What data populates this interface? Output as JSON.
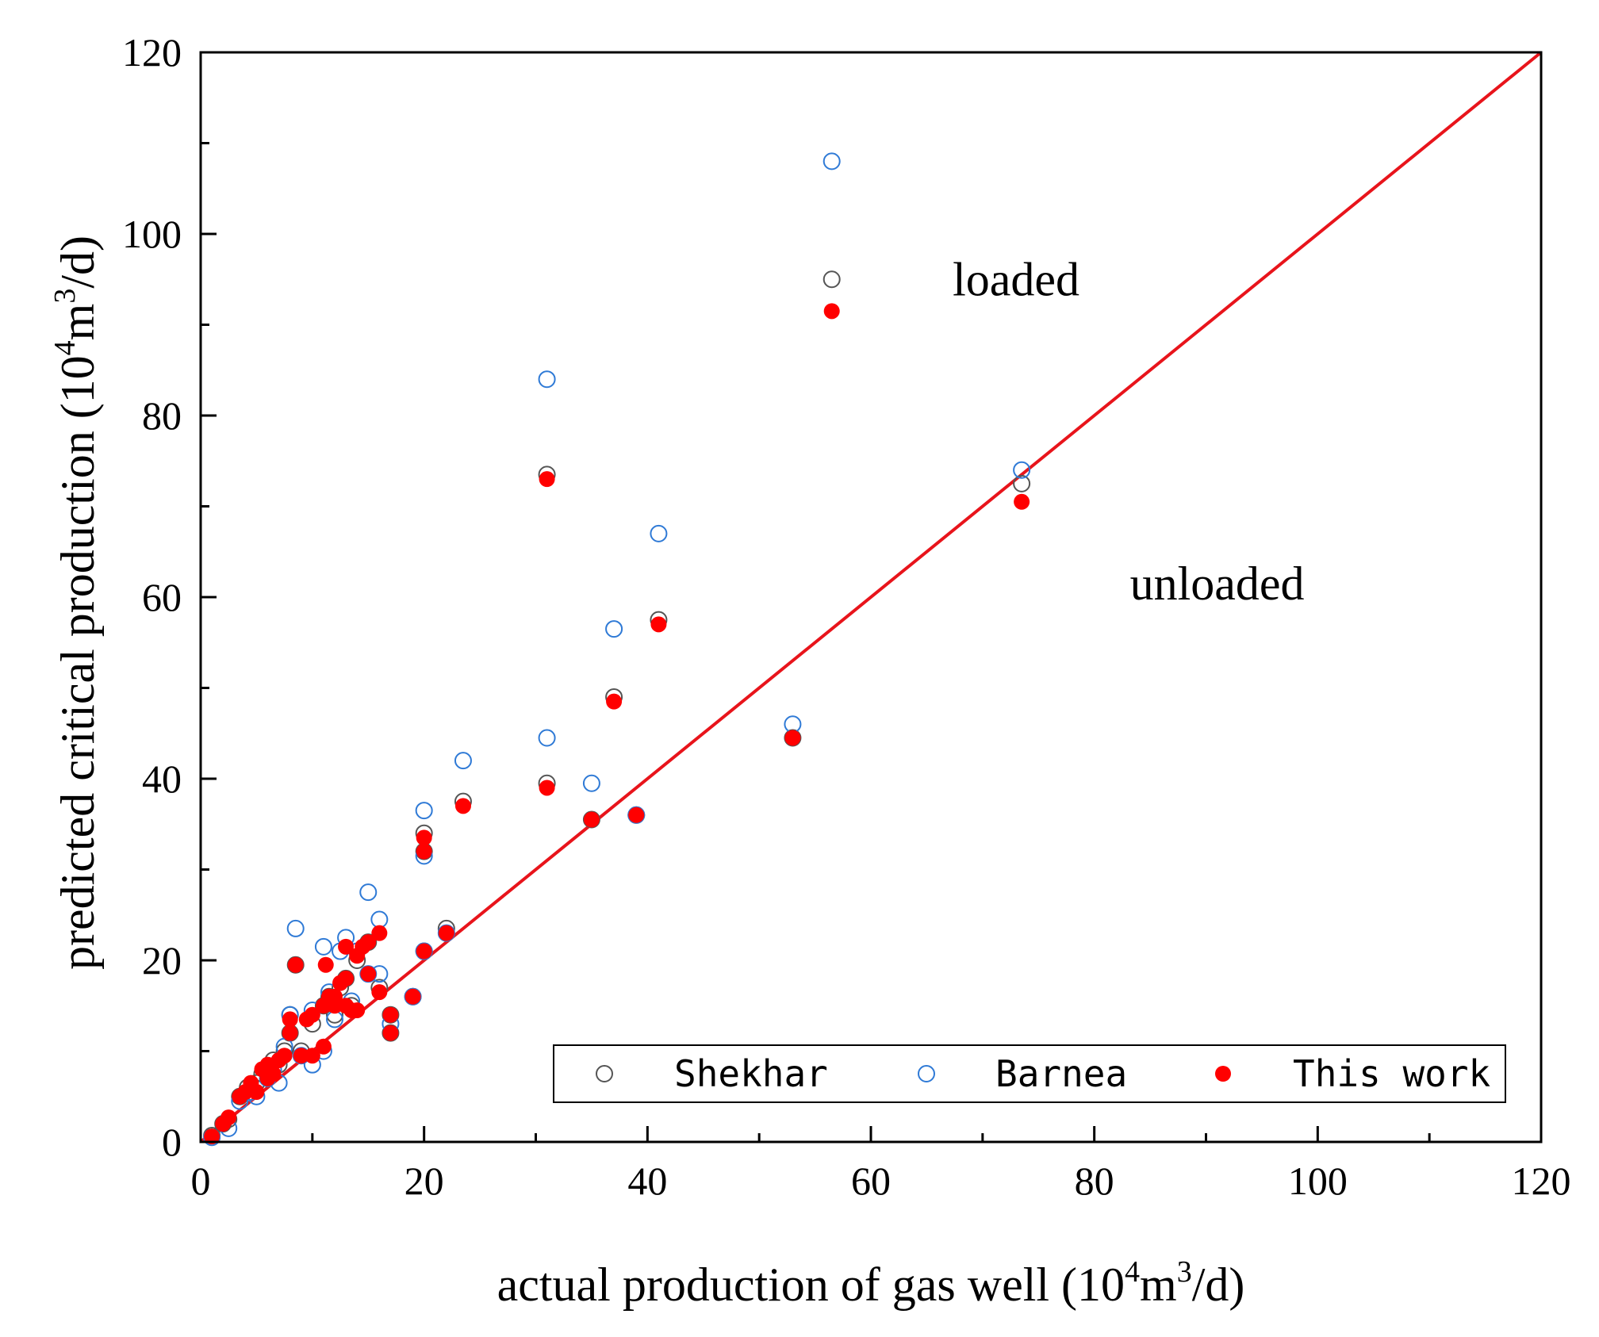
{
  "chart_data": {
    "type": "scatter",
    "title": "",
    "xlabel": "actual production of gas well (10^4m^3/d)",
    "ylabel": "predicted critical production (10^4m^3/d)",
    "xlabel_parts": {
      "pre": "actual production of gas well (10",
      "sup1": "4",
      "mid": "m",
      "sup2": "3",
      "post": "/d)"
    },
    "ylabel_parts": {
      "pre": "predicted critical production (10",
      "sup1": "4",
      "mid": "m",
      "sup2": "3",
      "post": "/d)"
    },
    "xlim": [
      0,
      120
    ],
    "ylim": [
      0,
      120
    ],
    "xticks": [
      0,
      20,
      40,
      60,
      80,
      100,
      120
    ],
    "yticks": [
      0,
      20,
      40,
      60,
      80,
      100,
      120
    ],
    "xtick_labels": [
      "0",
      "20",
      "40",
      "60",
      "80",
      "100",
      "120"
    ],
    "ytick_labels": [
      "0",
      "20",
      "40",
      "60",
      "80",
      "100",
      "120"
    ],
    "grid": false,
    "legend_position": "bottom-right",
    "annotations": [
      {
        "text": "loaded",
        "x": 73,
        "y": 95
      },
      {
        "text": "unloaded",
        "x": 91,
        "y": 61.5
      }
    ],
    "reference_line": {
      "name": "y = x",
      "x": [
        0,
        120
      ],
      "y": [
        0,
        120
      ],
      "color": "#e8141b"
    },
    "series": [
      {
        "name": "Shekhar",
        "marker": "open-circle",
        "color": "#555555",
        "points": [
          [
            1,
            0.7
          ],
          [
            2,
            2
          ],
          [
            2.5,
            2.5
          ],
          [
            3.5,
            5
          ],
          [
            4.2,
            6
          ],
          [
            5,
            6.5
          ],
          [
            5.5,
            7.5
          ],
          [
            6,
            8
          ],
          [
            6.5,
            9
          ],
          [
            7,
            8.5
          ],
          [
            7.5,
            10
          ],
          [
            8,
            12
          ],
          [
            8,
            14
          ],
          [
            8.5,
            19.5
          ],
          [
            9,
            10
          ],
          [
            10,
            13
          ],
          [
            11,
            15
          ],
          [
            11.5,
            16
          ],
          [
            12,
            14
          ],
          [
            12.5,
            17
          ],
          [
            13,
            18
          ],
          [
            13.5,
            15
          ],
          [
            14,
            20
          ],
          [
            15,
            22
          ],
          [
            16,
            17
          ],
          [
            17,
            14
          ],
          [
            17,
            12
          ],
          [
            19,
            16
          ],
          [
            20,
            21
          ],
          [
            20,
            32
          ],
          [
            20,
            34
          ],
          [
            22,
            23.5
          ],
          [
            23.5,
            37.5
          ],
          [
            31,
            39.5
          ],
          [
            31,
            73.5
          ],
          [
            35,
            35.5
          ],
          [
            37,
            49
          ],
          [
            39,
            36
          ],
          [
            41,
            57.5
          ],
          [
            53,
            44.5
          ],
          [
            56.5,
            95
          ],
          [
            73.5,
            72.5
          ]
        ]
      },
      {
        "name": "Barnea",
        "marker": "open-circle",
        "color": "#2f7ad6",
        "points": [
          [
            1,
            0.5
          ],
          [
            2.5,
            1.5
          ],
          [
            3.5,
            4.5
          ],
          [
            4.5,
            5.5
          ],
          [
            5,
            5
          ],
          [
            6,
            7
          ],
          [
            6.5,
            8
          ],
          [
            7,
            6.5
          ],
          [
            7.5,
            10.5
          ],
          [
            8,
            14
          ],
          [
            8.5,
            23.5
          ],
          [
            9,
            9.5
          ],
          [
            10,
            8.5
          ],
          [
            10,
            14.5
          ],
          [
            11,
            21.5
          ],
          [
            11,
            10
          ],
          [
            11.5,
            16.5
          ],
          [
            12,
            13.5
          ],
          [
            12.5,
            21
          ],
          [
            13,
            22.5
          ],
          [
            13.5,
            15.5
          ],
          [
            14,
            21
          ],
          [
            15,
            27.5
          ],
          [
            15,
            18.5
          ],
          [
            16,
            24.5
          ],
          [
            16,
            18.5
          ],
          [
            17,
            13
          ],
          [
            19,
            16
          ],
          [
            20,
            21
          ],
          [
            20,
            31.5
          ],
          [
            20,
            36.5
          ],
          [
            22,
            23
          ],
          [
            23.5,
            42
          ],
          [
            31,
            44.5
          ],
          [
            31,
            84
          ],
          [
            35,
            39.5
          ],
          [
            37,
            56.5
          ],
          [
            39,
            36
          ],
          [
            41,
            67
          ],
          [
            53,
            46
          ],
          [
            56.5,
            108
          ],
          [
            73.5,
            74
          ]
        ]
      },
      {
        "name": "This work",
        "marker": "filled-circle",
        "color": "#ff0000",
        "points": [
          [
            1,
            0.6
          ],
          [
            2,
            2
          ],
          [
            2.5,
            2.7
          ],
          [
            3.5,
            5
          ],
          [
            4,
            5.5
          ],
          [
            4.5,
            6.5
          ],
          [
            5,
            5.5
          ],
          [
            5.5,
            8
          ],
          [
            6,
            7
          ],
          [
            6,
            8.5
          ],
          [
            6.5,
            7.5
          ],
          [
            7,
            9
          ],
          [
            7.5,
            9.5
          ],
          [
            8,
            12
          ],
          [
            8,
            13.5
          ],
          [
            8.5,
            19.5
          ],
          [
            9,
            9.5
          ],
          [
            9.5,
            13.5
          ],
          [
            10,
            14
          ],
          [
            10,
            9.5
          ],
          [
            11,
            10.5
          ],
          [
            11,
            15
          ],
          [
            11.2,
            19.5
          ],
          [
            11.5,
            16
          ],
          [
            12,
            15
          ],
          [
            12,
            16
          ],
          [
            12.5,
            17.5
          ],
          [
            13,
            21.5
          ],
          [
            13,
            18
          ],
          [
            13,
            15
          ],
          [
            13.5,
            14.5
          ],
          [
            14,
            20.5
          ],
          [
            14,
            14.5
          ],
          [
            14.5,
            21.5
          ],
          [
            15,
            22
          ],
          [
            15,
            18.5
          ],
          [
            16,
            23
          ],
          [
            16,
            16.5
          ],
          [
            17,
            14
          ],
          [
            17,
            12
          ],
          [
            19,
            16
          ],
          [
            20,
            21
          ],
          [
            20,
            32
          ],
          [
            20,
            33.5
          ],
          [
            22,
            23
          ],
          [
            23.5,
            37
          ],
          [
            31,
            39
          ],
          [
            31,
            73
          ],
          [
            35,
            35.5
          ],
          [
            37,
            48.5
          ],
          [
            39,
            36
          ],
          [
            41,
            57
          ],
          [
            53,
            44.5
          ],
          [
            56.5,
            91.5
          ],
          [
            73.5,
            70.5
          ]
        ]
      }
    ]
  }
}
